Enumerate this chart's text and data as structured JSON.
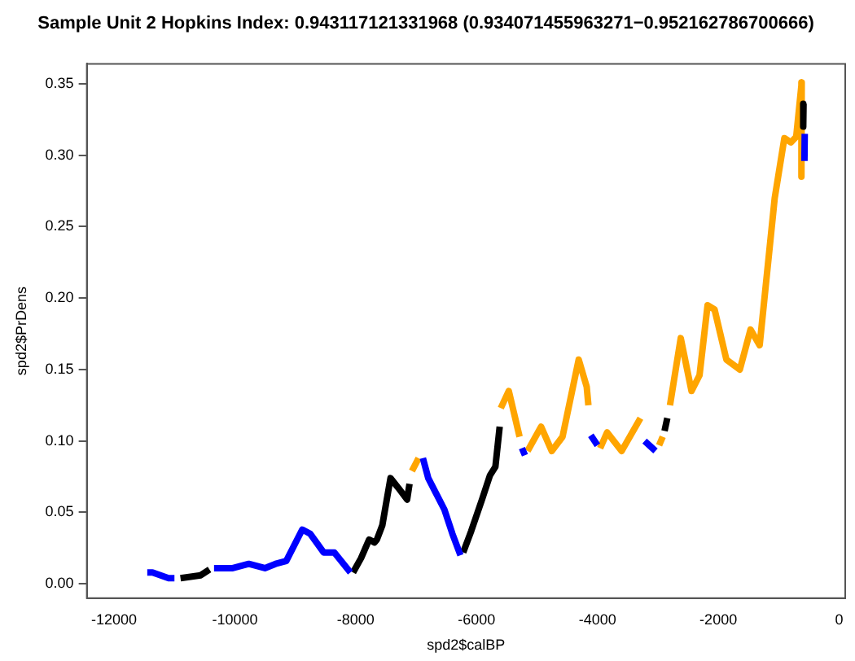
{
  "chart_data": {
    "type": "line",
    "title": "Sample Unit 2 Hopkins Index: 0.943117121331968 (0.934071455963271−0.952162786700666)",
    "xlabel": "spd2$calBP",
    "ylabel": "spd2$PrDens",
    "xlim": [
      -12450,
      100
    ],
    "ylim": [
      -0.01,
      0.364
    ],
    "xticks": [
      -12000,
      -10000,
      -8000,
      -6000,
      -4000,
      -2000,
      0
    ],
    "yticks": [
      {
        "value": 0,
        "label": "0.00"
      },
      {
        "value": 0.05,
        "label": "0.05"
      },
      {
        "value": 0.1,
        "label": "0.10"
      },
      {
        "value": 0.15,
        "label": "0.15"
      },
      {
        "value": 0.2,
        "label": "0.20"
      },
      {
        "value": 0.25,
        "label": "0.25"
      },
      {
        "value": 0.3,
        "label": "0.30"
      },
      {
        "value": 0.35,
        "label": "0.35"
      }
    ],
    "grid": false,
    "legend": false,
    "marker": "none",
    "line_style": "solid",
    "series": [
      {
        "color": "#0000ff",
        "x": [
          -11450,
          -11363,
          -11097,
          -11000,
          null,
          -10345,
          -10035,
          -9770,
          -9504,
          -9327,
          -9150,
          -8885,
          -8752,
          -8531,
          -8354,
          -8088,
          null,
          -6889,
          -6800,
          -6667,
          -6533,
          -6400,
          -6267,
          null,
          -5250,
          -5200,
          null,
          -4110,
          -4000,
          null,
          -3220,
          -3040,
          null,
          -570,
          -575
        ],
        "values": [
          0.008,
          0.008,
          0.004,
          0.004,
          null,
          0.011,
          0.011,
          0.014,
          0.011,
          0.014,
          0.016,
          0.038,
          0.035,
          0.022,
          0.022,
          0.008,
          null,
          0.088,
          0.074,
          0.063,
          0.052,
          0.035,
          0.02,
          null,
          0.095,
          0.09,
          null,
          0.104,
          0.097,
          null,
          0.1,
          0.093,
          null,
          0.315,
          0.296
        ]
      },
      {
        "color": "#000000",
        "x": [
          -10900,
          -10566,
          -10420,
          null,
          -8044,
          -7912,
          -7779,
          -7690,
          -7650,
          -7560,
          -7425,
          -7292,
          -7150,
          -7110,
          null,
          -6222,
          -6089,
          -5911,
          -5778,
          -5689,
          -5618,
          null,
          -2890,
          -2844,
          null,
          -590,
          -595
        ],
        "values": [
          0.004,
          0.006,
          0.01,
          null,
          0.008,
          0.018,
          0.031,
          0.029,
          0.031,
          0.041,
          0.074,
          0.067,
          0.059,
          0.07,
          null,
          0.022,
          0.037,
          0.059,
          0.076,
          0.082,
          0.11,
          null,
          0.107,
          0.116,
          null,
          0.336,
          0.32
        ]
      },
      {
        "color": "#ffa500",
        "x": [
          -7070,
          -6960,
          null,
          -5600,
          -5467,
          -5289,
          null,
          -5156,
          -4933,
          -4756,
          -4578,
          -4311,
          -4178,
          -4150,
          null,
          -3956,
          -3840,
          -3600,
          -3289,
          null,
          -2980,
          -2920,
          null,
          -2800,
          -2622,
          -2444,
          -2311,
          -2178,
          -2062,
          -1867,
          -1644,
          -1467,
          -1316,
          -1067,
          -907,
          -800,
          -711,
          -620,
          -625
        ],
        "values": [
          0.079,
          0.088,
          null,
          0.123,
          0.135,
          0.103,
          null,
          0.093,
          0.11,
          0.093,
          0.103,
          0.157,
          0.138,
          0.125,
          null,
          0.095,
          0.106,
          0.093,
          0.116,
          null,
          0.097,
          0.103,
          null,
          0.125,
          0.172,
          0.135,
          0.146,
          0.195,
          0.192,
          0.157,
          0.15,
          0.178,
          0.167,
          0.27,
          0.312,
          0.309,
          0.313,
          0.351,
          0.285
        ]
      }
    ]
  }
}
